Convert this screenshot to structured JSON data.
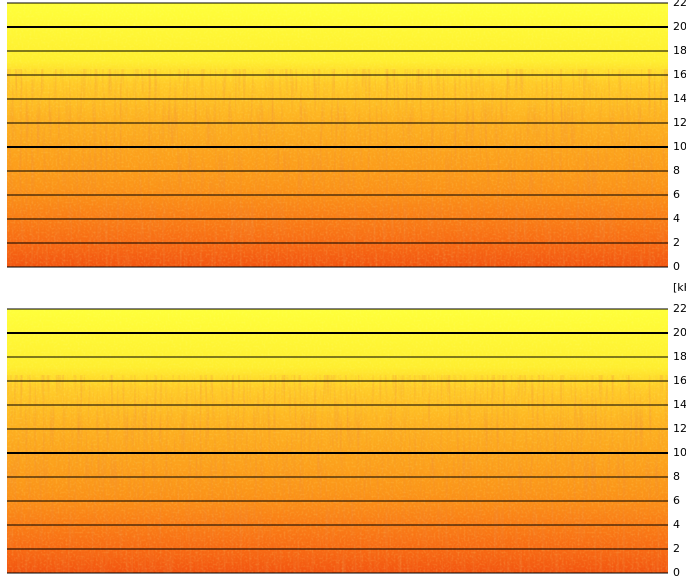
{
  "chart_data": [
    {
      "type": "spectrogram",
      "ylim": [
        0,
        22
      ],
      "yticks": [
        0,
        2,
        4,
        6,
        8,
        10,
        12,
        14,
        16,
        18,
        20,
        22
      ],
      "grid": true,
      "major_grid": [
        10,
        20
      ],
      "ylabel": "[kH"
    },
    {
      "type": "spectrogram",
      "ylim": [
        0,
        22
      ],
      "yticks": [
        0,
        2,
        4,
        6,
        8,
        10,
        12,
        14,
        16,
        18,
        20,
        22
      ],
      "grid": true,
      "major_grid": [
        10,
        20
      ]
    }
  ]
}
